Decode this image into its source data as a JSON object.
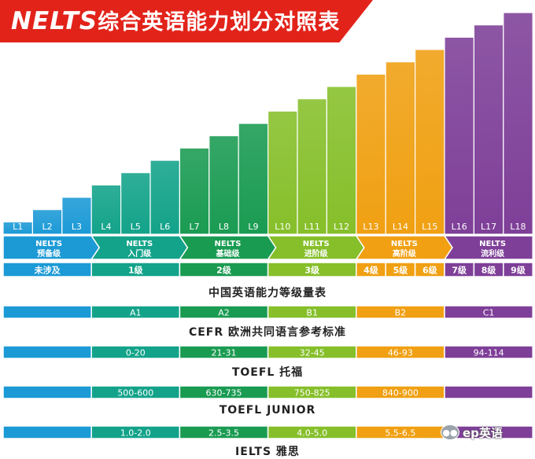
{
  "header": {
    "brand": "NELTS",
    "title": "综合英语能力划分对照表"
  },
  "colors": {
    "blue": "#1c9ad6",
    "teal": "#13a38a",
    "green": "#1a9b52",
    "lime": "#86bf2a",
    "orange": "#f0a012",
    "purple": "#7e3f98"
  },
  "chart_data": {
    "type": "bar",
    "categories": [
      "L1",
      "L2",
      "L3",
      "L4",
      "L5",
      "L6",
      "L7",
      "L8",
      "L9",
      "L10",
      "L11",
      "L12",
      "L13",
      "L14",
      "L15",
      "L16",
      "L17",
      "L18"
    ],
    "values": [
      1,
      2,
      3,
      4,
      5,
      6,
      7,
      8,
      9,
      10,
      11,
      12,
      13,
      14,
      15,
      16,
      17,
      18
    ],
    "ylim": [
      0,
      18
    ],
    "stages": [
      {
        "line1": "NELTS",
        "line2": "预备级",
        "from": 0,
        "to": 3,
        "color": "#1c9ad6"
      },
      {
        "line1": "NELTS",
        "line2": "入门级",
        "from": 3,
        "to": 6,
        "color": "#13a38a"
      },
      {
        "line1": "NELTS",
        "line2": "基础级",
        "from": 6,
        "to": 9,
        "color": "#1a9b52"
      },
      {
        "line1": "NELTS",
        "line2": "进阶级",
        "from": 9,
        "to": 12,
        "color": "#86bf2a"
      },
      {
        "line1": "NELTS",
        "line2": "高阶级",
        "from": 12,
        "to": 15,
        "color": "#f0a012"
      },
      {
        "line1": "NELTS",
        "line2": "流利级",
        "from": 15,
        "to": 18,
        "color": "#7e3f98"
      }
    ],
    "china_scale": {
      "label": "中国英语能力等级量表",
      "bands": [
        {
          "text": "未涉及",
          "from": 0,
          "to": 3
        },
        {
          "text": "1级",
          "from": 3,
          "to": 6
        },
        {
          "text": "2级",
          "from": 6,
          "to": 9
        },
        {
          "text": "3级",
          "from": 9,
          "to": 12
        },
        {
          "text": "4级",
          "from": 12,
          "to": 13
        },
        {
          "text": "5级",
          "from": 13,
          "to": 14
        },
        {
          "text": "6级",
          "from": 14,
          "to": 15
        },
        {
          "text": "7级",
          "from": 15,
          "to": 16
        },
        {
          "text": "8级",
          "from": 16,
          "to": 17
        },
        {
          "text": "9级",
          "from": 17,
          "to": 18
        }
      ]
    },
    "exam_rows": [
      {
        "label": "CEFR 欧洲共同语言参考标准",
        "bands": [
          {
            "text": "",
            "from": 0,
            "to": 3,
            "color": "#1c9ad6"
          },
          {
            "text": "A1",
            "from": 3,
            "to": 6,
            "color": "#13a38a"
          },
          {
            "text": "A2",
            "from": 6,
            "to": 9,
            "color": "#1a9b52"
          },
          {
            "text": "B1",
            "from": 9,
            "to": 12,
            "color": "#86bf2a"
          },
          {
            "text": "B2",
            "from": 12,
            "to": 15,
            "color": "#f0a012"
          },
          {
            "text": "C1",
            "from": 15,
            "to": 18,
            "color": "#7e3f98"
          }
        ]
      },
      {
        "label": "TOEFL 托福",
        "bands": [
          {
            "text": "",
            "from": 0,
            "to": 3,
            "color": "#1c9ad6"
          },
          {
            "text": "0-20",
            "from": 3,
            "to": 6,
            "color": "#13a38a"
          },
          {
            "text": "21-31",
            "from": 6,
            "to": 9,
            "color": "#1a9b52"
          },
          {
            "text": "32-45",
            "from": 9,
            "to": 12,
            "color": "#86bf2a"
          },
          {
            "text": "46-93",
            "from": 12,
            "to": 15,
            "color": "#f0a012"
          },
          {
            "text": "94-114",
            "from": 15,
            "to": 18,
            "color": "#7e3f98"
          }
        ]
      },
      {
        "label": "TOEFL JUNIOR",
        "bands": [
          {
            "text": "",
            "from": 0,
            "to": 3,
            "color": "#1c9ad6"
          },
          {
            "text": "500-600",
            "from": 3,
            "to": 6,
            "color": "#13a38a"
          },
          {
            "text": "630-735",
            "from": 6,
            "to": 9,
            "color": "#1a9b52"
          },
          {
            "text": "750-825",
            "from": 9,
            "to": 12,
            "color": "#86bf2a"
          },
          {
            "text": "840-900",
            "from": 12,
            "to": 15,
            "color": "#f0a012"
          },
          {
            "text": "",
            "from": 15,
            "to": 18,
            "color": "#7e3f98"
          }
        ]
      },
      {
        "label": "IELTS 雅思",
        "bands": [
          {
            "text": "",
            "from": 0,
            "to": 3,
            "color": "#1c9ad6"
          },
          {
            "text": "1.0-2.0",
            "from": 3,
            "to": 6,
            "color": "#13a38a"
          },
          {
            "text": "2.5-3.5",
            "from": 6,
            "to": 9,
            "color": "#1a9b52"
          },
          {
            "text": "4.0-5.0",
            "from": 9,
            "to": 12,
            "color": "#86bf2a"
          },
          {
            "text": "5.5-6.5",
            "from": 12,
            "to": 15,
            "color": "#f0a012"
          },
          {
            "text": "",
            "from": 15,
            "to": 18,
            "color": "#7e3f98"
          }
        ]
      }
    ]
  },
  "watermark": {
    "icon": "wechat-icon",
    "text": "ep英语"
  }
}
